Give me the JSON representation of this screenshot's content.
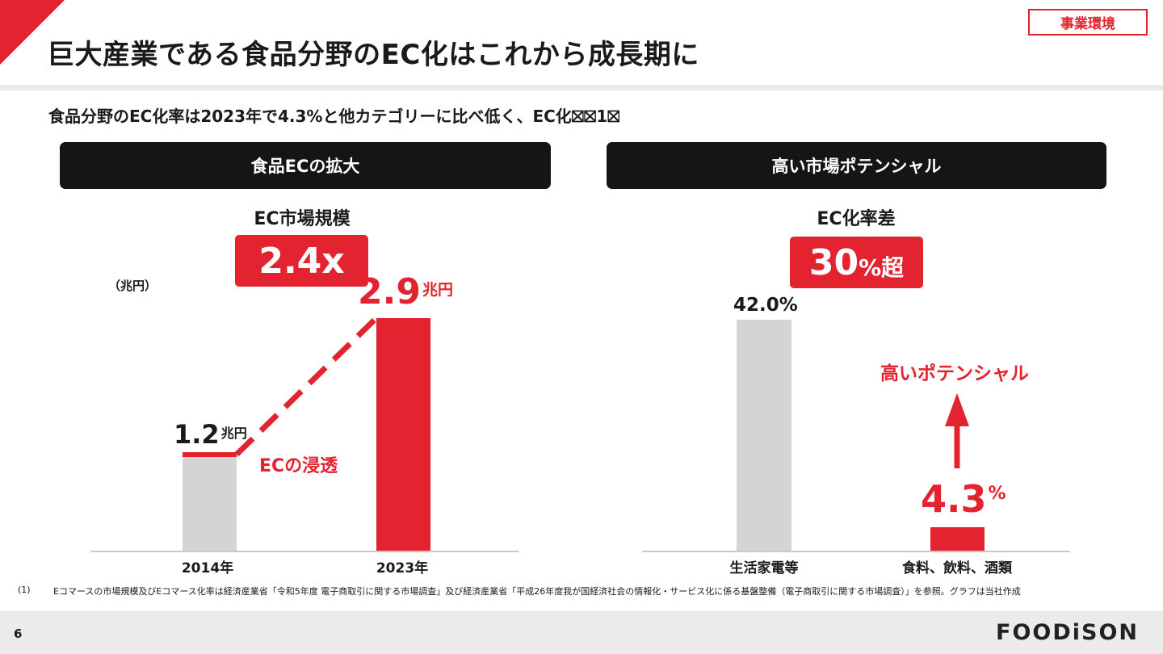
{
  "header": {
    "title": "巨大産業である食品分野のEC化はこれから成長期に",
    "tag": "事業環境",
    "subtitle": "食品分野のEC化率は2023年で4.3%と他カテゴリーに比べ低く、EC化⛝⛝1⛝"
  },
  "left_panel": {
    "header": "食品ECの拡大",
    "metric_label": "EC市場規模",
    "metric_value": "2.4x",
    "unit_label": "（兆円）",
    "annotation": "ECの浸透"
  },
  "right_panel": {
    "header": "高い市場ポテンシャル",
    "metric_label": "EC化率差",
    "metric_value": "30",
    "metric_unit": "%超",
    "annotation": "高いポテンシャル"
  },
  "chart_data": [
    {
      "type": "bar",
      "categories": [
        "2014年",
        "2023年"
      ],
      "values": [
        1.2,
        2.9
      ],
      "value_labels": [
        "1.2",
        "2.9"
      ],
      "value_unit": "兆円",
      "ylabel": "（兆円）",
      "ylim": [
        0,
        3.1
      ],
      "colors": [
        "#d4d4d4",
        "#e32430"
      ]
    },
    {
      "type": "bar",
      "categories": [
        "生活家電等",
        "食料、飲料、酒類"
      ],
      "values": [
        42.0,
        4.3
      ],
      "value_labels": [
        "42.0%",
        "4.3"
      ],
      "value_unit": "%",
      "ylim": [
        0,
        46
      ],
      "colors": [
        "#d4d4d4",
        "#e32430"
      ]
    }
  ],
  "footer": {
    "footnote_number": "(1)",
    "footnote": "Eコマースの市場規模及びEコマース化率は経済産業省「令和5年度 電子商取引に関する市場調査」及び経済産業省「平成26年度我が国経済社会の情報化・サービス化に係る基盤整備（電子商取引に関する市場調査）」を参照。グラフは当社作成",
    "page_number": "6",
    "logo": "FOODiSON"
  },
  "colors": {
    "accent": "#e32430",
    "dark": "#151515",
    "gray_bar": "#d4d4d4"
  }
}
